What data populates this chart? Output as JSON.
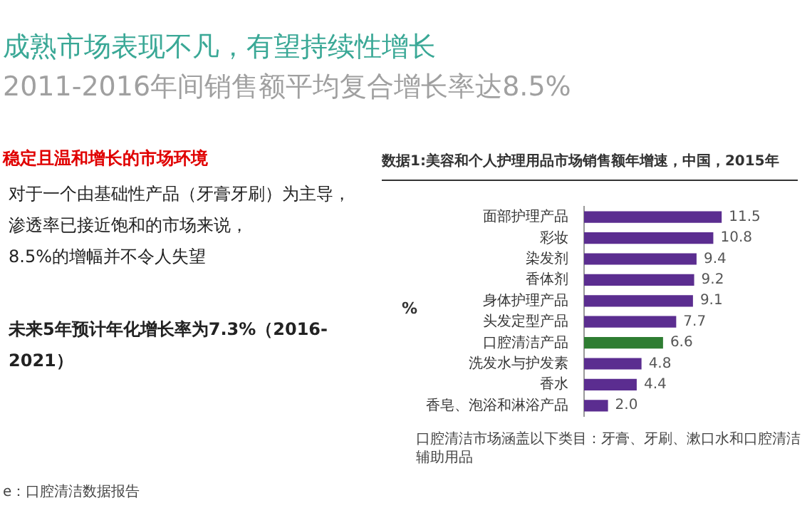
{
  "chart_data": {
    "type": "bar",
    "orientation": "horizontal",
    "title": "数据1:美容和个人护理用品市场销售额年增速，中国，2015年",
    "ylabel": "%",
    "categories": [
      "面部护理产品",
      "彩妆",
      "染发剂",
      "香体剂",
      "身体护理产品",
      "头发定型产品",
      "口腔清洁产品",
      "洗发水与护发素",
      "香水",
      "香皂、泡浴和淋浴产品"
    ],
    "values": [
      11.5,
      10.8,
      9.4,
      9.2,
      9.1,
      7.7,
      6.6,
      4.8,
      4.4,
      2.0
    ],
    "colors": [
      "#5b2d90",
      "#5b2d90",
      "#5b2d90",
      "#5b2d90",
      "#5b2d90",
      "#5b2d90",
      "#2e7d32",
      "#5b2d90",
      "#5b2d90",
      "#5b2d90"
    ],
    "value_labels": [
      "11.5",
      "10.8",
      "9.4",
      "9.2",
      "9.1",
      "7.7",
      "6.6",
      "4.8",
      "4.4",
      "2.0"
    ],
    "annotations": [
      "成熟市场表现不凡，有望持续性增长",
      "2011-2016年间销售额平均复合增长率达8.5%",
      "稳定且温和增长的市场环境",
      "对于一个由基础性产品（牙膏牙刷）为主导，",
      "渗透率已接近饱和的市场来说，",
      "8.5%的增幅并不令人失望",
      "未来5年预计年化增长率为7.3%（2016-2021）",
      "口腔清洁市场涵盖以下类目：牙膏、牙刷、漱口水和口腔清洁辅助用品",
      "e：口腔清洁数据报告"
    ]
  }
}
